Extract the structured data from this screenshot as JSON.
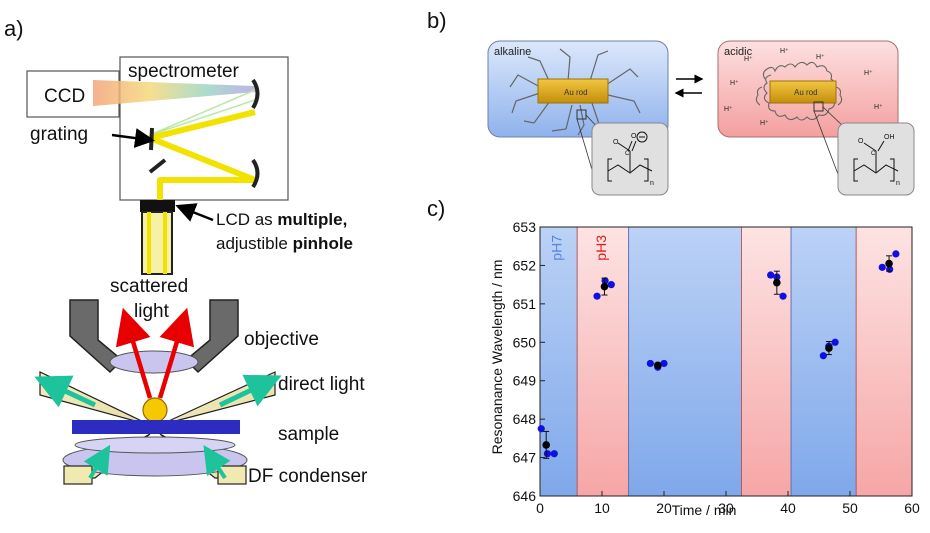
{
  "panel_a": {
    "label": "a)",
    "ccd": "CCD",
    "spectrometer": "spectrometer",
    "grating": "grating",
    "lcd_line1_a": "LCD as ",
    "lcd_line1_b": "multiple,",
    "lcd_line2_a": "adjustible ",
    "lcd_line2_b": "pinhole",
    "scattered_line1": "scattered",
    "scattered_line2": "light",
    "objective": "objective",
    "direct_light": "direct light",
    "sample": "sample",
    "df_condenser": "DF condenser"
  },
  "panel_b": {
    "label": "b)",
    "alkaline": "alkaline",
    "acidic": "acidic",
    "au_rod_left": "Au rod",
    "au_rod_right": "Au rod",
    "proton": "H⁺",
    "subscript_n": "n",
    "oh_label": "OH",
    "o_label": "O",
    "c_label": "C"
  },
  "panel_c": {
    "label": "c)"
  },
  "colors": {
    "blue_band": "#9cbdf0",
    "red_band": "#f7b3b3",
    "marker_blue": "#1010e0",
    "marker_black": "#000000",
    "yellow": "#f2e200",
    "dark_blue": "#2c2cc0"
  },
  "chart_data": {
    "type": "scatter",
    "title": "",
    "xlabel": "Time / min",
    "ylabel": "Resonanance Wavelength / nm",
    "xlim": [
      0,
      60
    ],
    "ylim": [
      646,
      653
    ],
    "xticks": [
      "0",
      "10",
      "20",
      "30",
      "40",
      "50",
      "60"
    ],
    "yticks": [
      "646",
      "647",
      "648",
      "649",
      "650",
      "651",
      "652",
      "653"
    ],
    "bands": [
      {
        "from": 0,
        "to": 6,
        "label": "pH7",
        "color": "blue"
      },
      {
        "from": 6,
        "to": 14.3,
        "label": "pH3",
        "color": "red"
      },
      {
        "from": 14.3,
        "to": 32.5,
        "label": "",
        "color": "blue"
      },
      {
        "from": 32.5,
        "to": 40.5,
        "label": "",
        "color": "red"
      },
      {
        "from": 40.5,
        "to": 51,
        "label": "",
        "color": "blue"
      },
      {
        "from": 51,
        "to": 60,
        "label": "",
        "color": "red"
      }
    ],
    "series": [
      {
        "points": [
          {
            "x": 0.2,
            "y": 647.75
          },
          {
            "x": 1.2,
            "y": 647.1
          },
          {
            "x": 2.3,
            "y": 647.1
          },
          {
            "x": 9.2,
            "y": 651.2
          },
          {
            "x": 10.5,
            "y": 651.6
          },
          {
            "x": 11.5,
            "y": 651.5
          },
          {
            "x": 17.8,
            "y": 649.45
          },
          {
            "x": 19.0,
            "y": 649.35
          },
          {
            "x": 20.0,
            "y": 649.45
          },
          {
            "x": 37.2,
            "y": 651.75
          },
          {
            "x": 38.2,
            "y": 651.7
          },
          {
            "x": 39.2,
            "y": 651.2
          },
          {
            "x": 45.7,
            "y": 649.65
          },
          {
            "x": 46.6,
            "y": 649.9
          },
          {
            "x": 47.6,
            "y": 650.0
          },
          {
            "x": 55.2,
            "y": 651.95
          },
          {
            "x": 56.4,
            "y": 651.9
          },
          {
            "x": 57.4,
            "y": 652.3
          }
        ]
      },
      {
        "points": [
          {
            "x": 1.0,
            "y": 647.33,
            "err": 0.35
          },
          {
            "x": 10.4,
            "y": 651.45,
            "err": 0.22
          },
          {
            "x": 19.0,
            "y": 649.4,
            "err": 0.06
          },
          {
            "x": 38.2,
            "y": 651.55,
            "err": 0.3
          },
          {
            "x": 46.6,
            "y": 649.85,
            "err": 0.17
          },
          {
            "x": 56.3,
            "y": 652.05,
            "err": 0.2
          }
        ]
      }
    ]
  }
}
